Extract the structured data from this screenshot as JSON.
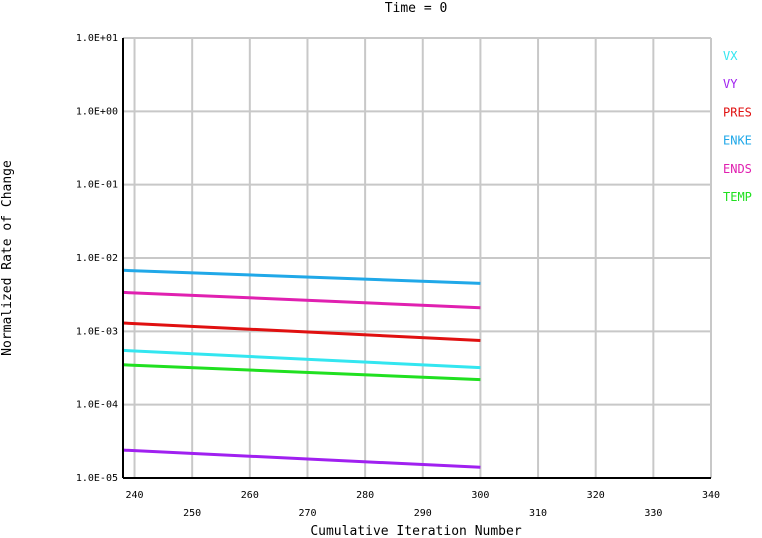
{
  "chart_data": {
    "type": "line",
    "title": "Time = 0",
    "xlabel": "Cumulative Iteration Number",
    "ylabel": "Normalized Rate of Change",
    "xlim": [
      238,
      340
    ],
    "ylim": [
      1e-05,
      10
    ],
    "y_scale": "log",
    "grid": true,
    "legend_position": "right",
    "x_ticks": [
      {
        "value": 240,
        "label": "240",
        "row": "upper"
      },
      {
        "value": 250,
        "label": "250",
        "row": "lower"
      },
      {
        "value": 260,
        "label": "260",
        "row": "upper"
      },
      {
        "value": 270,
        "label": "270",
        "row": "lower"
      },
      {
        "value": 280,
        "label": "280",
        "row": "upper"
      },
      {
        "value": 290,
        "label": "290",
        "row": "lower"
      },
      {
        "value": 300,
        "label": "300",
        "row": "upper"
      },
      {
        "value": 310,
        "label": "310",
        "row": "lower"
      },
      {
        "value": 320,
        "label": "320",
        "row": "upper"
      },
      {
        "value": 330,
        "label": "330",
        "row": "lower"
      },
      {
        "value": 340,
        "label": "340",
        "row": "upper"
      }
    ],
    "y_ticks": [
      {
        "value": 10,
        "label": "1.0E+01"
      },
      {
        "value": 1,
        "label": "1.0E+00"
      },
      {
        "value": 0.1,
        "label": "1.0E-01"
      },
      {
        "value": 0.01,
        "label": "1.0E-02"
      },
      {
        "value": 0.001,
        "label": "1.0E-03"
      },
      {
        "value": 0.0001,
        "label": "1.0E-04"
      },
      {
        "value": 1e-05,
        "label": "1.0E-05"
      }
    ],
    "series": [
      {
        "name": "VX",
        "color": "#33e6f0",
        "x": [
          238,
          300
        ],
        "values": [
          0.00055,
          0.00032
        ]
      },
      {
        "name": "VY",
        "color": "#a020f0",
        "x": [
          238,
          300
        ],
        "values": [
          2.4e-05,
          1.4e-05
        ]
      },
      {
        "name": "PRES",
        "color": "#e01010",
        "x": [
          238,
          300
        ],
        "values": [
          0.0013,
          0.00075
        ]
      },
      {
        "name": "ENKE",
        "color": "#20a8e8",
        "x": [
          238,
          300
        ],
        "values": [
          0.0068,
          0.0045
        ]
      },
      {
        "name": "ENDS",
        "color": "#e020b0",
        "x": [
          238,
          300
        ],
        "values": [
          0.0034,
          0.0021
        ]
      },
      {
        "name": "TEMP",
        "color": "#20e020",
        "x": [
          238,
          300
        ],
        "values": [
          0.00035,
          0.00022
        ]
      }
    ]
  }
}
